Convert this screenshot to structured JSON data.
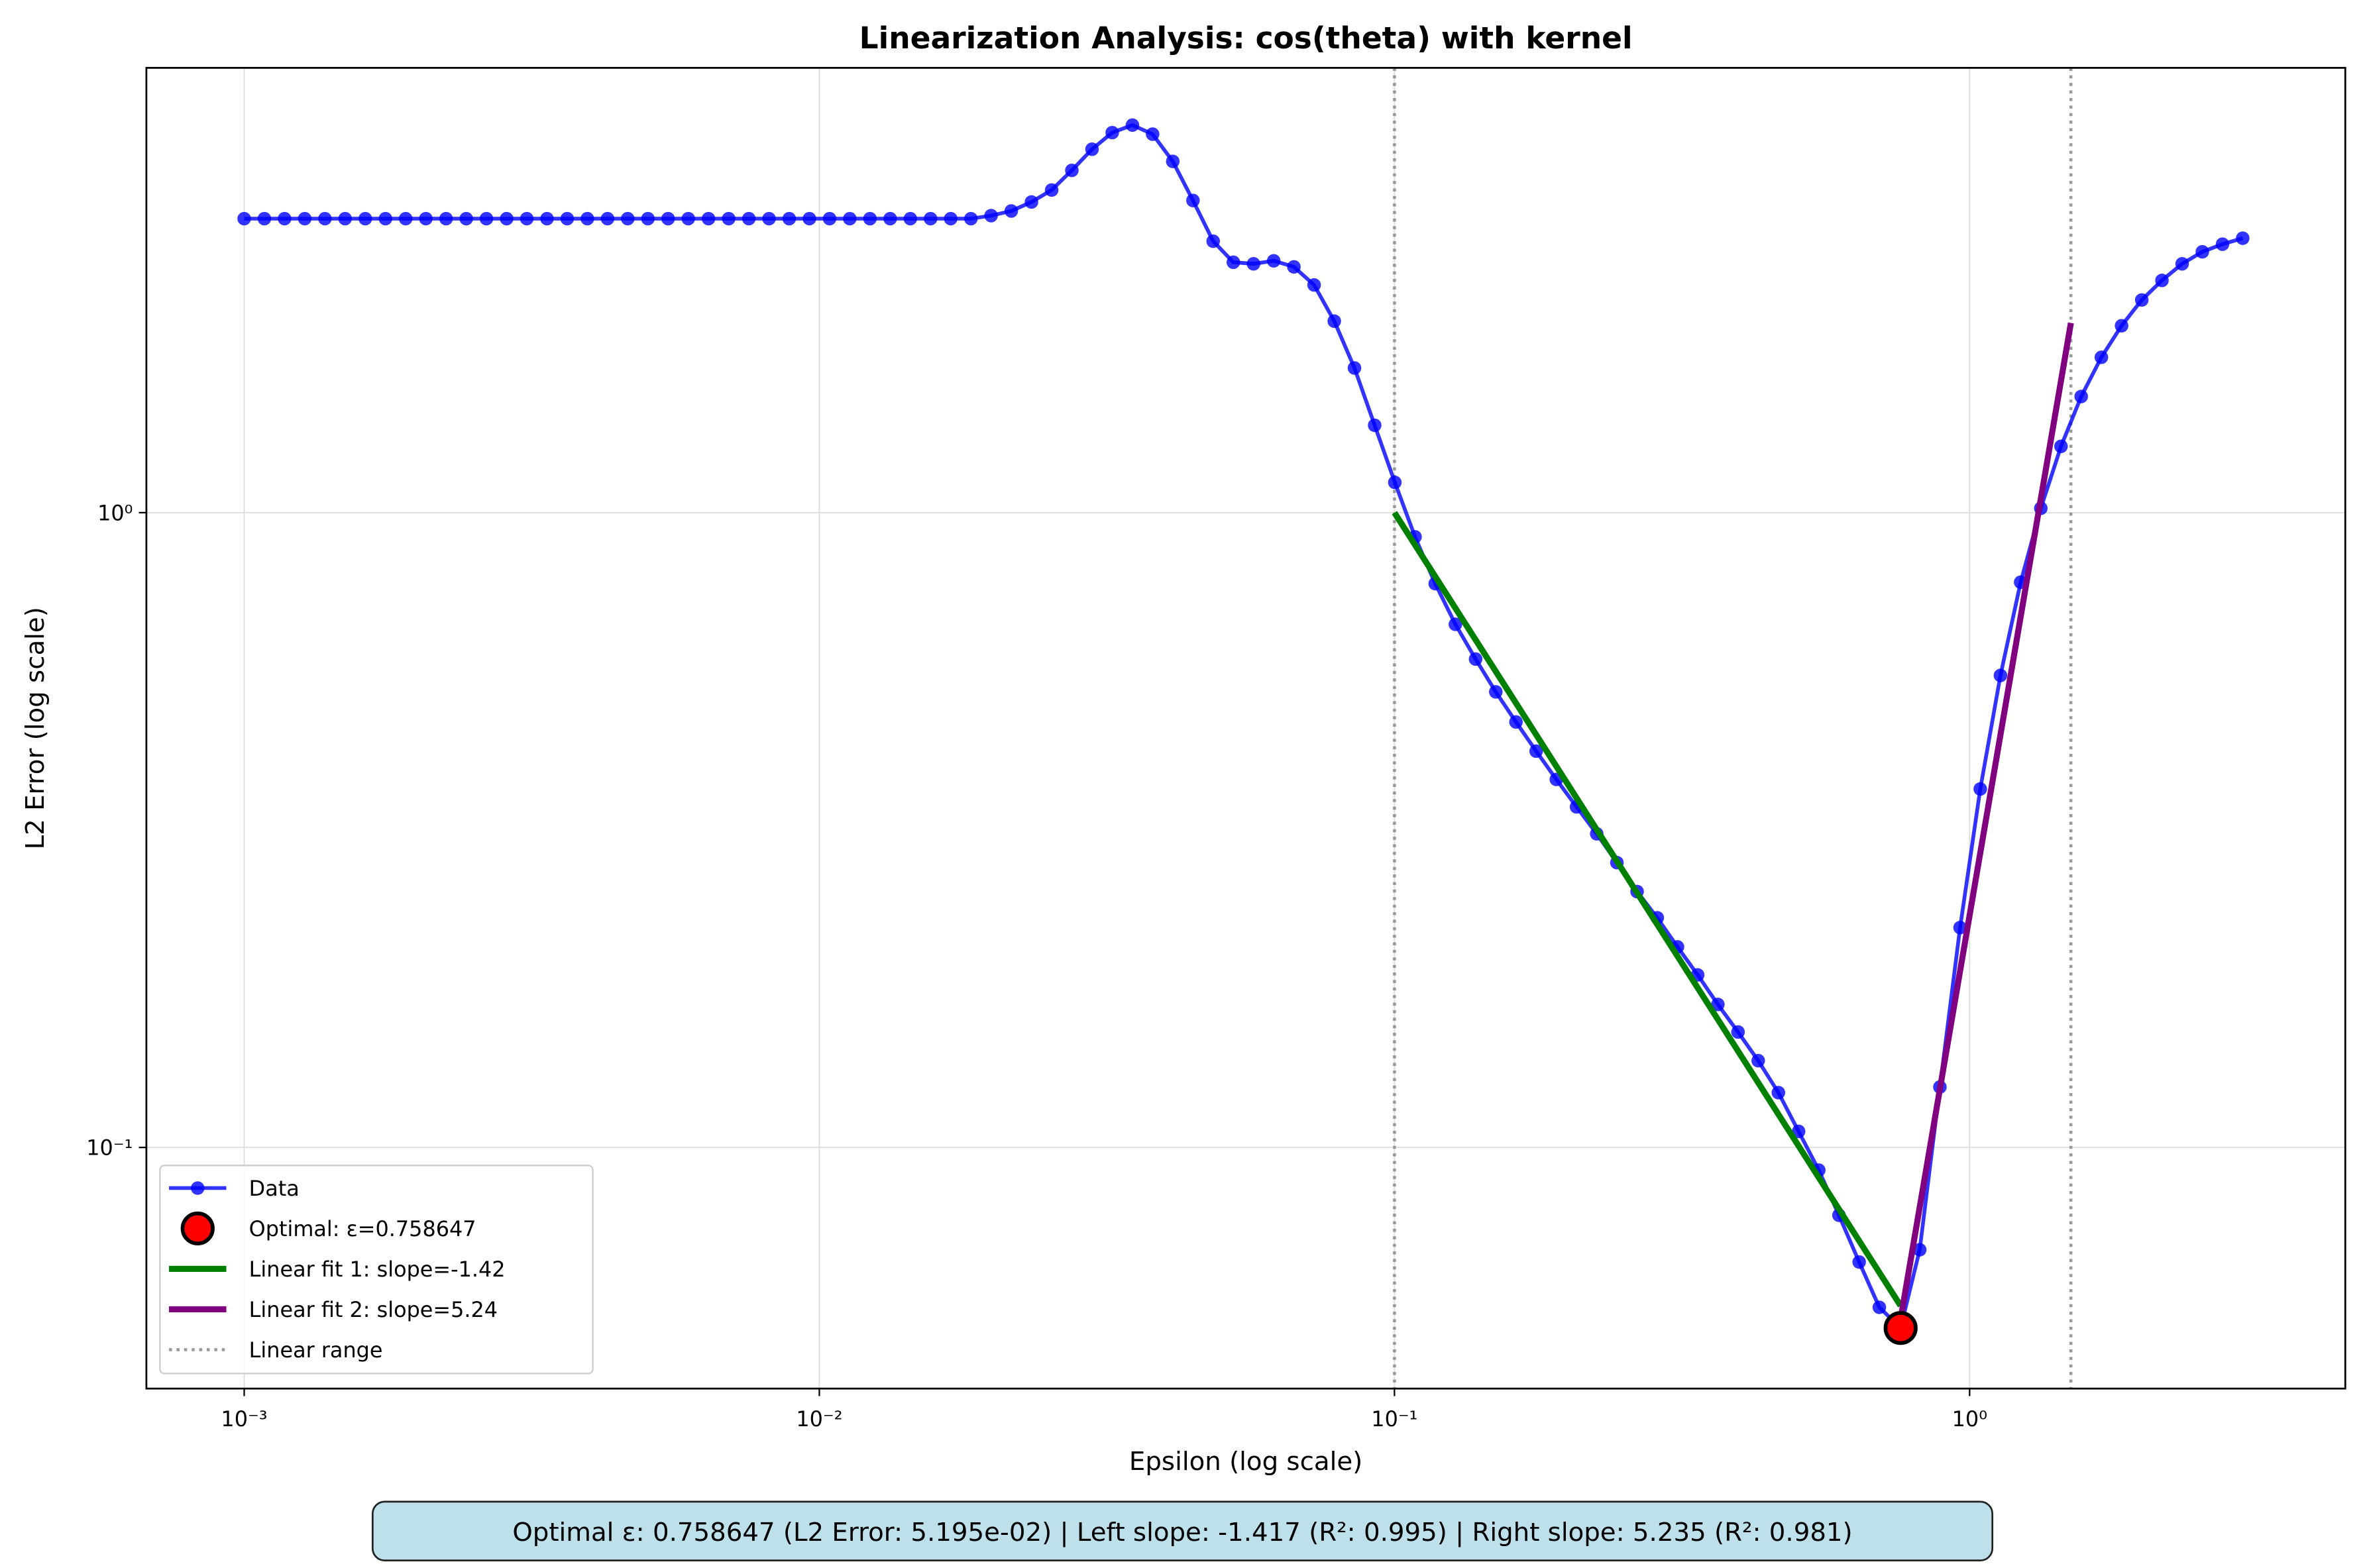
{
  "chart_data": {
    "type": "line",
    "title": "Linearization Analysis: cos(theta) with kernel",
    "xlabel": "Epsilon (log scale)",
    "ylabel": "L2 Error (log scale)",
    "xscale": "log",
    "yscale": "log",
    "grid": true,
    "legend": "lower left",
    "xlim": [
      0.000676,
      4.5
    ],
    "ylim": [
      0.0417,
      5.02
    ],
    "xticks": [
      {
        "value": 0.001,
        "label": "10⁻³"
      },
      {
        "value": 0.01,
        "label": "10⁻²"
      },
      {
        "value": 0.1,
        "label": "10⁻¹"
      },
      {
        "value": 1,
        "label": "10⁰"
      }
    ],
    "yticks": [
      {
        "value": 0.1,
        "label": "10⁻¹"
      },
      {
        "value": 1,
        "label": "10⁰"
      }
    ],
    "x": [
      0.001,
      0.0010842,
      0.0011754,
      0.0012743,
      0.0013816,
      0.0014979,
      0.001624,
      0.0017607,
      0.0019089,
      0.0020696,
      0.0022438,
      0.0024327,
      0.0026375,
      0.0028595,
      0.0031002,
      0.0033611,
      0.003644,
      0.0039507,
      0.0042833,
      0.0046438,
      0.0050347,
      0.0054585,
      0.005918,
      0.0064161,
      0.0069562,
      0.0075417,
      0.0081765,
      0.0088648,
      0.009611,
      0.01042,
      0.011297,
      0.012248,
      0.013279,
      0.014397,
      0.015609,
      0.016922,
      0.018347,
      0.019891,
      0.021566,
      0.023381,
      0.025349,
      0.027483,
      0.029796,
      0.032304,
      0.035024,
      0.037972,
      0.041168,
      0.044633,
      0.04839,
      0.052464,
      0.05688,
      0.061668,
      0.066859,
      0.072487,
      0.078588,
      0.085203,
      0.092375,
      0.10015,
      0.10858,
      0.11772,
      0.12763,
      0.13838,
      0.15002,
      0.16265,
      0.17634,
      0.19118,
      0.20728,
      0.22472,
      0.24364,
      0.26415,
      0.28638,
      0.31049,
      0.33663,
      0.36496,
      0.39568,
      0.42899,
      0.4651,
      0.50425,
      0.54669,
      0.59271,
      0.6426,
      0.69669,
      0.758647,
      0.81892,
      0.88785,
      0.96259,
      1.0436,
      1.1314,
      1.2267,
      1.3299,
      1.4419,
      1.5632,
      1.6948,
      1.8375,
      1.9922,
      2.1599,
      2.3417,
      2.5388,
      2.7525,
      2.9842
    ],
    "series": [
      {
        "name": "Data",
        "color": "#0000ff",
        "values": [
          2.905,
          2.905,
          2.905,
          2.905,
          2.905,
          2.905,
          2.905,
          2.905,
          2.905,
          2.905,
          2.905,
          2.905,
          2.905,
          2.905,
          2.905,
          2.905,
          2.905,
          2.905,
          2.905,
          2.905,
          2.905,
          2.905,
          2.905,
          2.905,
          2.905,
          2.905,
          2.905,
          2.905,
          2.905,
          2.905,
          2.905,
          2.905,
          2.905,
          2.905,
          2.905,
          2.905,
          2.905,
          2.937,
          2.987,
          3.086,
          3.223,
          3.461,
          3.737,
          3.969,
          4.079,
          3.947,
          3.576,
          3.103,
          2.677,
          2.48,
          2.466,
          2.493,
          2.439,
          2.284,
          2.003,
          1.69,
          1.373,
          1.116,
          0.916,
          0.773,
          0.667,
          0.588,
          0.522,
          0.468,
          0.421,
          0.38,
          0.344,
          0.312,
          0.281,
          0.253,
          0.23,
          0.207,
          0.187,
          0.168,
          0.152,
          0.137,
          0.122,
          0.106,
          0.0921,
          0.0782,
          0.066,
          0.056,
          0.05195,
          0.069,
          0.1245,
          0.222,
          0.367,
          0.554,
          0.777,
          1.016,
          1.272,
          1.524,
          1.757,
          1.97,
          2.163,
          2.322,
          2.466,
          2.576,
          2.648,
          2.706
        ]
      }
    ],
    "optimal": {
      "name": "Optimal: ε=0.758647",
      "x": 0.758647,
      "y": 0.05195,
      "color": "#ff0000"
    },
    "fits": [
      {
        "name": "Linear fit 1: slope=-1.42",
        "color": "#008000",
        "x": [
          0.1,
          0.758647
        ],
        "y": [
          1.0,
          0.0563
        ]
      },
      {
        "name": "Linear fit 2: slope=5.24",
        "color": "#800080",
        "x": [
          0.758647,
          1.5
        ],
        "y": [
          0.0537,
          1.99
        ]
      }
    ],
    "linear_range": {
      "name": "Linear range",
      "color": "#999999",
      "x": [
        0.1,
        1.5
      ]
    },
    "annotation": "Optimal ε: 0.758647 (L2 Error: 5.195e-02) | Left slope: -1.417 (R²: 0.995) | Right slope: 5.235 (R²: 0.981)"
  }
}
